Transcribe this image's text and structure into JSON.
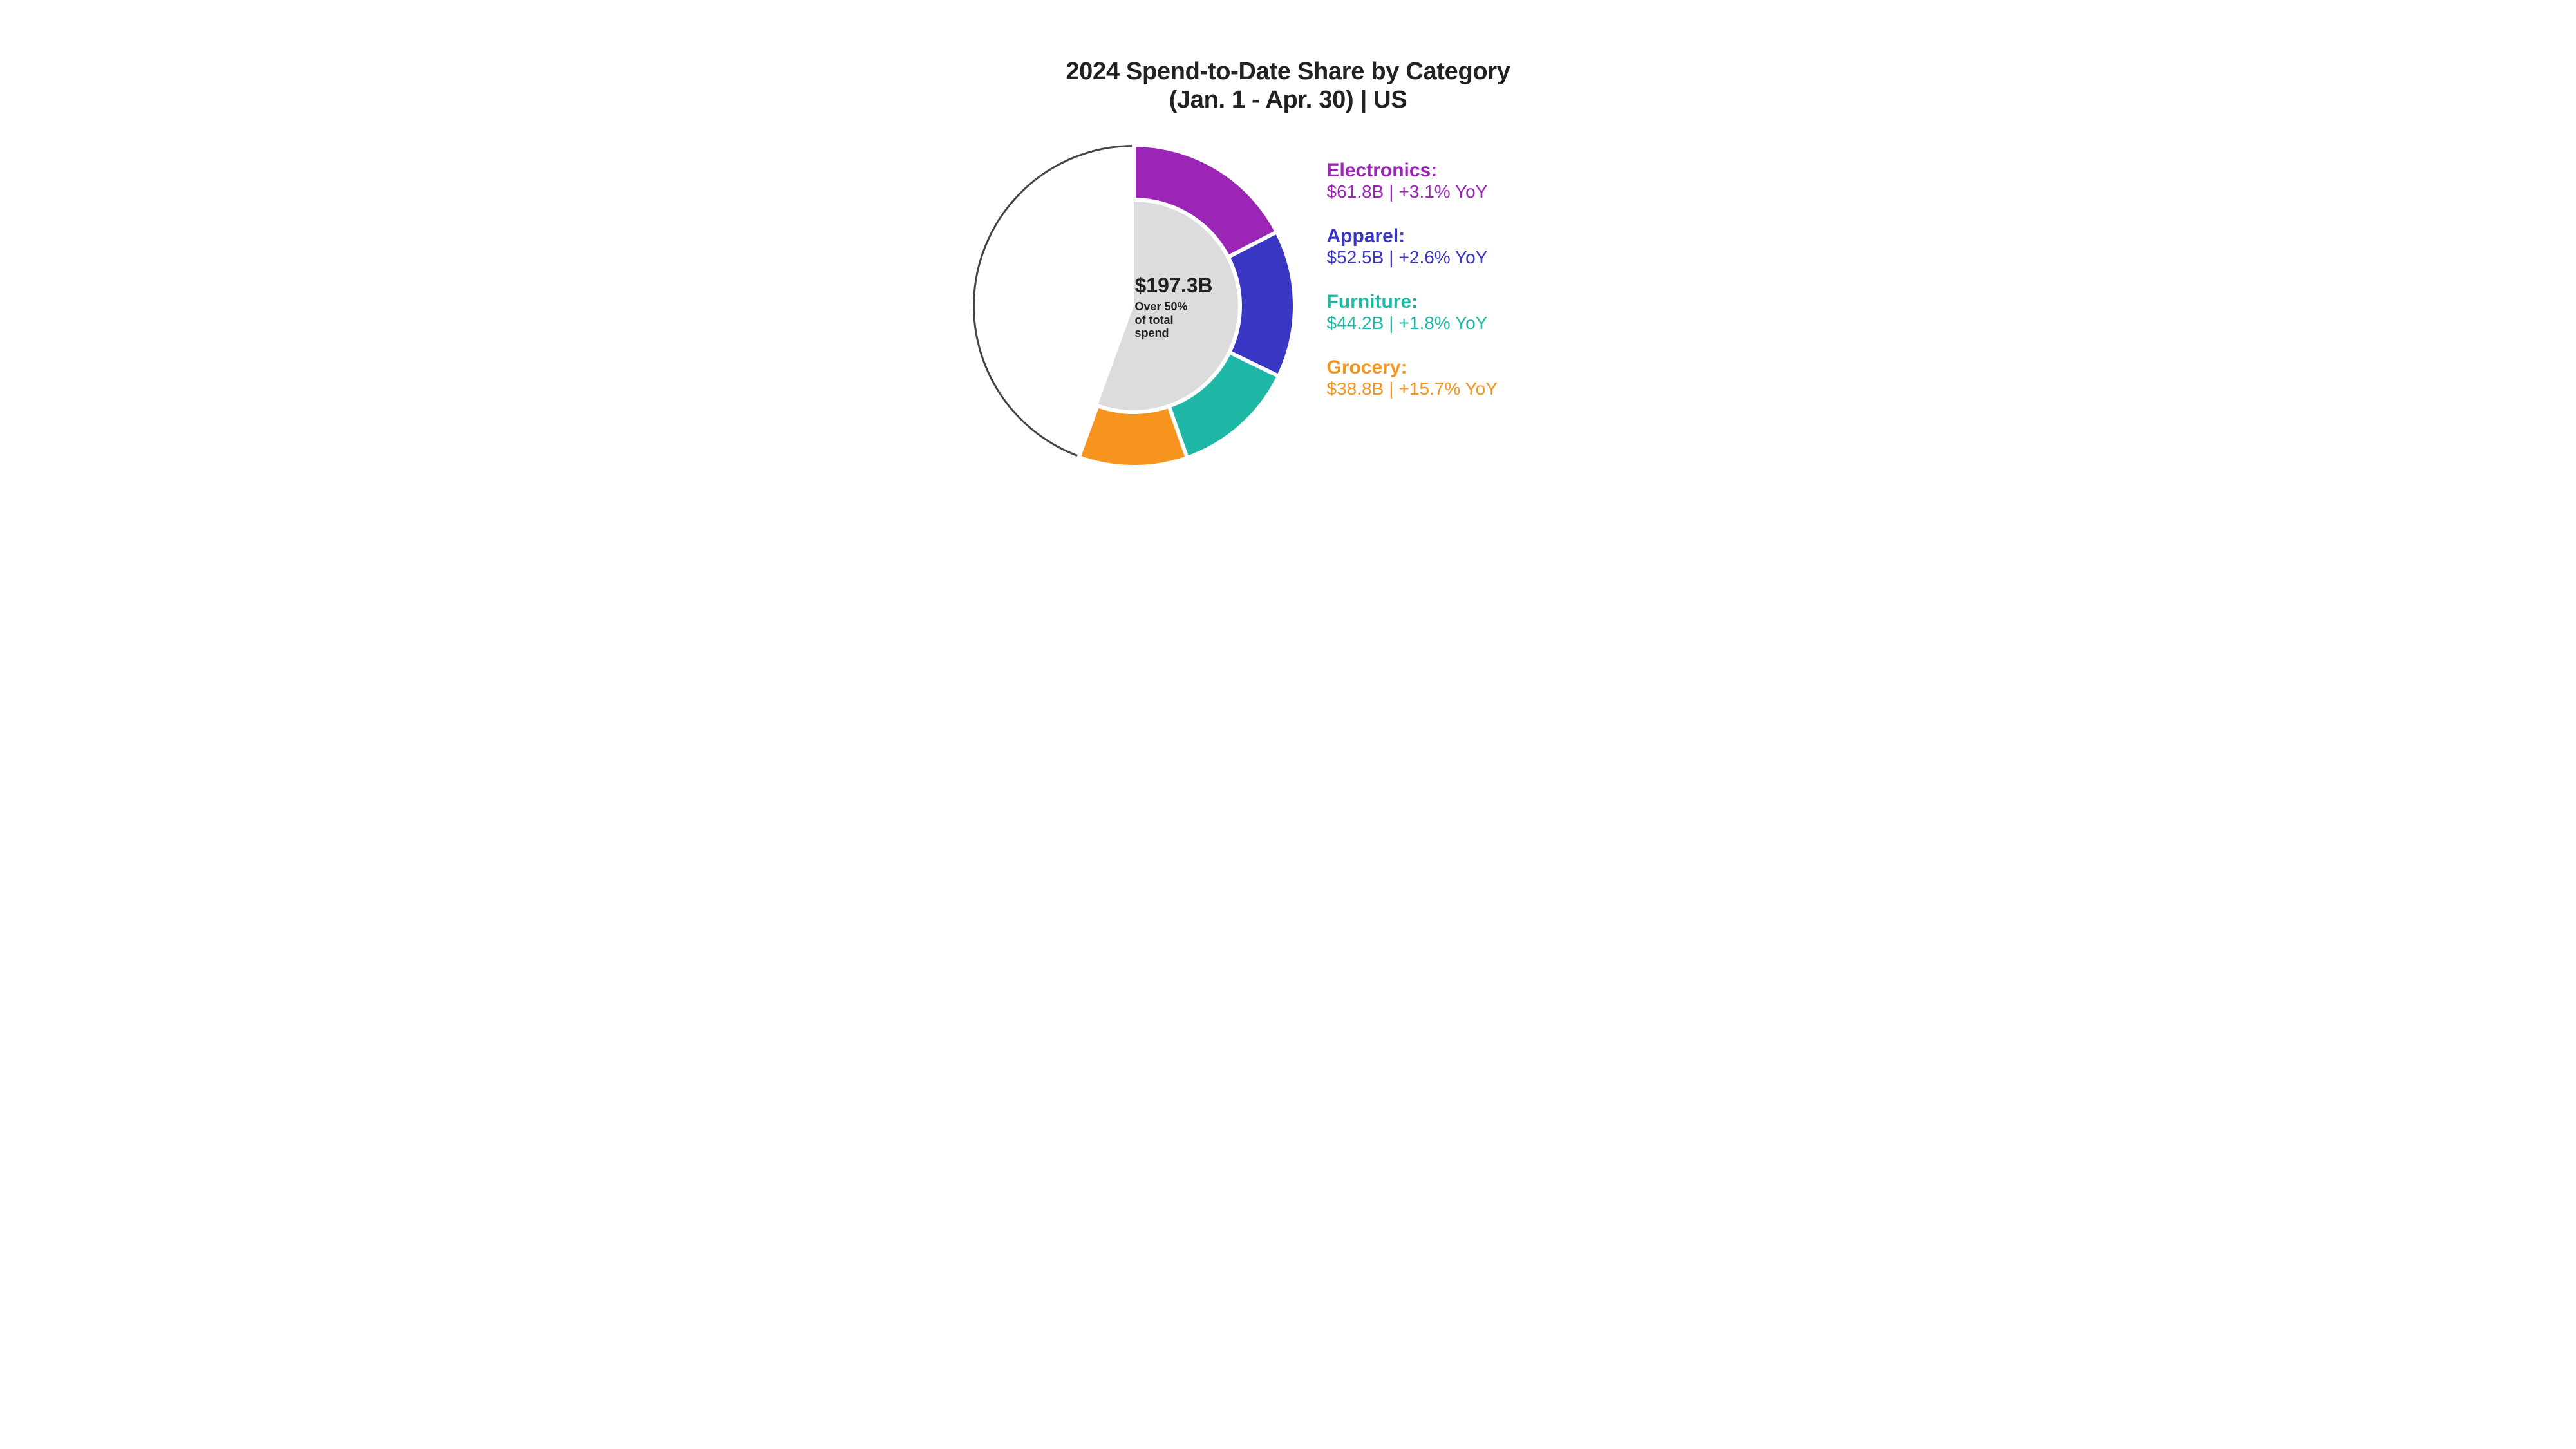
{
  "title_line1": "2024 Spend-to-Date Share by Category",
  "title_line2": "(Jan. 1 - Apr. 30)  |  US",
  "title_color": "#222222",
  "title_fontsize_pt": 29,
  "background_color": "#ffffff",
  "chart": {
    "type": "donut",
    "outer_radius": 250,
    "inner_radius": 165,
    "ring_stroke_color": "#444444",
    "ring_stroke_width": 3,
    "inner_fill_color": "#dcdcdc",
    "gap_stroke_color": "#ffffff",
    "gap_stroke_width": 6,
    "empty_half_fill": "#ffffff",
    "start_angle_deg": 0,
    "slices": [
      {
        "key": "electronics",
        "value": 61.8,
        "color": "#9b26b6"
      },
      {
        "key": "apparel",
        "value": 52.5,
        "color": "#3a36c4"
      },
      {
        "key": "furniture",
        "value": 44.2,
        "color": "#1fb8a6"
      },
      {
        "key": "grocery",
        "value": 38.8,
        "color": "#f7941d"
      }
    ],
    "center_total": "$197.3B",
    "center_sub1": "Over 50%",
    "center_sub2": "of total",
    "center_sub3": "spend",
    "center_text_color": "#222222",
    "center_big_fontsize_pt": 24,
    "center_small_fontsize_pt": 14
  },
  "legend": {
    "separator": "|",
    "label_fontsize_pt": 23,
    "value_fontsize_pt": 21,
    "items": [
      {
        "key": "electronics",
        "label": "Electronics:",
        "amount": "$61.8B",
        "yoy": "+3.1% YoY",
        "color": "#9b26b6"
      },
      {
        "key": "apparel",
        "label": "Apparel:",
        "amount": "$52.5B",
        "yoy": "+2.6% YoY",
        "color": "#3a36c4"
      },
      {
        "key": "furniture",
        "label": "Furniture:",
        "amount": "$44.2B",
        "yoy": "+1.8% YoY",
        "color": "#1fb8a6"
      },
      {
        "key": "grocery",
        "label": "Grocery:",
        "amount": "$38.8B",
        "yoy": "+15.7% YoY",
        "color": "#f7941d"
      }
    ]
  }
}
